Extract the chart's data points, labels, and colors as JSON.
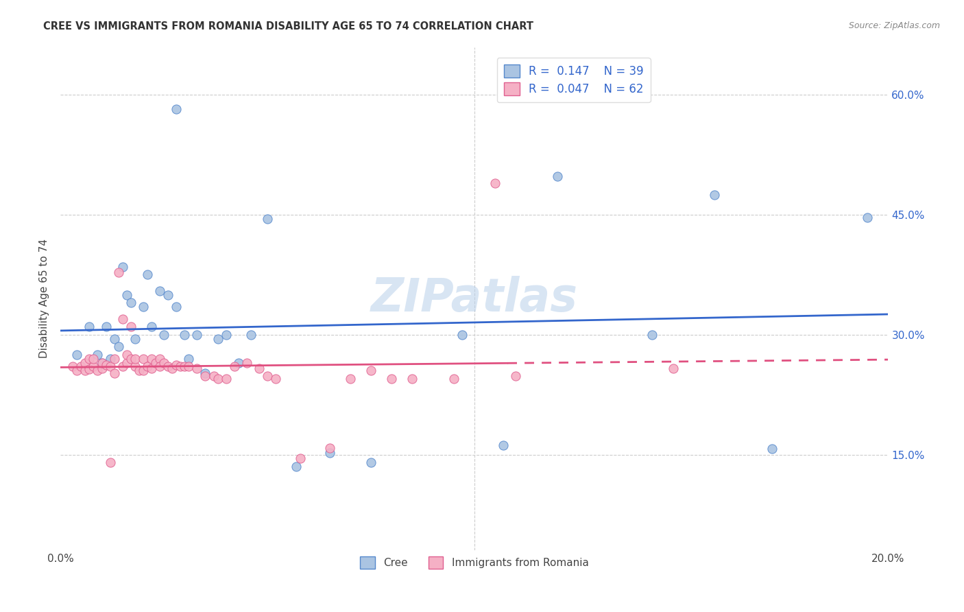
{
  "title": "CREE VS IMMIGRANTS FROM ROMANIA DISABILITY AGE 65 TO 74 CORRELATION CHART",
  "source": "Source: ZipAtlas.com",
  "ylabel": "Disability Age 65 to 74",
  "ytick_values": [
    0.15,
    0.3,
    0.45,
    0.6
  ],
  "xlim": [
    0.0,
    0.2
  ],
  "ylim": [
    0.03,
    0.66
  ],
  "legend_labels": [
    "Cree",
    "Immigrants from Romania"
  ],
  "r_cree": 0.147,
  "n_cree": 39,
  "r_romania": 0.047,
  "n_romania": 62,
  "cree_color": "#aac4e2",
  "romania_color": "#f5b0c5",
  "cree_edge_color": "#5588cc",
  "romania_edge_color": "#e06090",
  "cree_line_color": "#3366cc",
  "romania_line_color": "#e05080",
  "watermark": "ZIPatlas",
  "background_color": "#ffffff",
  "cree_scatter_x": [
    0.004,
    0.007,
    0.009,
    0.01,
    0.011,
    0.012,
    0.013,
    0.014,
    0.015,
    0.016,
    0.017,
    0.018,
    0.02,
    0.021,
    0.022,
    0.024,
    0.025,
    0.026,
    0.028,
    0.03,
    0.031,
    0.033,
    0.035,
    0.038,
    0.04,
    0.043,
    0.046,
    0.05,
    0.057,
    0.065,
    0.075,
    0.097,
    0.107,
    0.12,
    0.143,
    0.158,
    0.172,
    0.195,
    0.028
  ],
  "cree_scatter_y": [
    0.275,
    0.31,
    0.275,
    0.265,
    0.31,
    0.27,
    0.295,
    0.285,
    0.385,
    0.35,
    0.34,
    0.295,
    0.335,
    0.375,
    0.31,
    0.355,
    0.3,
    0.35,
    0.335,
    0.3,
    0.27,
    0.3,
    0.252,
    0.295,
    0.3,
    0.265,
    0.3,
    0.445,
    0.135,
    0.152,
    0.14,
    0.3,
    0.162,
    0.498,
    0.3,
    0.475,
    0.157,
    0.447,
    0.582
  ],
  "romania_scatter_x": [
    0.003,
    0.004,
    0.005,
    0.006,
    0.006,
    0.007,
    0.007,
    0.008,
    0.008,
    0.009,
    0.01,
    0.01,
    0.011,
    0.012,
    0.012,
    0.013,
    0.013,
    0.014,
    0.015,
    0.015,
    0.016,
    0.016,
    0.017,
    0.017,
    0.018,
    0.018,
    0.019,
    0.02,
    0.02,
    0.021,
    0.022,
    0.022,
    0.023,
    0.024,
    0.024,
    0.025,
    0.026,
    0.027,
    0.028,
    0.029,
    0.03,
    0.031,
    0.033,
    0.035,
    0.037,
    0.038,
    0.04,
    0.042,
    0.045,
    0.048,
    0.05,
    0.052,
    0.058,
    0.065,
    0.07,
    0.075,
    0.08,
    0.085,
    0.095,
    0.105,
    0.11,
    0.148
  ],
  "romania_scatter_y": [
    0.26,
    0.255,
    0.26,
    0.255,
    0.265,
    0.257,
    0.27,
    0.26,
    0.27,
    0.255,
    0.258,
    0.265,
    0.262,
    0.14,
    0.26,
    0.252,
    0.27,
    0.378,
    0.26,
    0.32,
    0.265,
    0.275,
    0.27,
    0.31,
    0.26,
    0.27,
    0.255,
    0.255,
    0.27,
    0.26,
    0.258,
    0.27,
    0.265,
    0.27,
    0.26,
    0.265,
    0.26,
    0.258,
    0.262,
    0.26,
    0.26,
    0.26,
    0.258,
    0.248,
    0.248,
    0.245,
    0.245,
    0.26,
    0.265,
    0.258,
    0.248,
    0.245,
    0.145,
    0.158,
    0.245,
    0.255,
    0.245,
    0.245,
    0.245,
    0.49,
    0.248,
    0.258
  ]
}
